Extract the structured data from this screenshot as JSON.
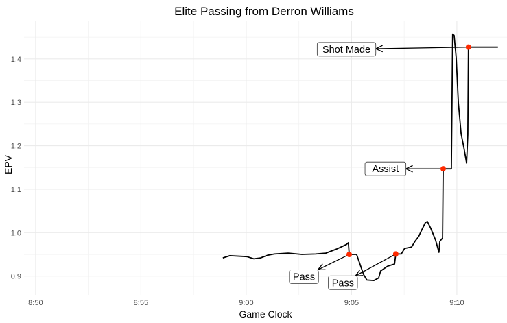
{
  "chart_data": {
    "type": "line",
    "title": "Elite Passing from Derron Williams",
    "xlabel": "Game Clock",
    "ylabel": "EPV",
    "grid": true,
    "legend": "none",
    "xlim": [
      529.45,
      552.38
    ],
    "ylim": [
      0.857,
      1.488
    ],
    "x_ticks": [
      {
        "value": 530,
        "label": "8:50"
      },
      {
        "value": 535,
        "label": "8:55"
      },
      {
        "value": 540,
        "label": "9:00"
      },
      {
        "value": 545,
        "label": "9:05"
      },
      {
        "value": 550,
        "label": "9:10"
      }
    ],
    "y_ticks": [
      {
        "value": 0.9,
        "label": "0.9"
      },
      {
        "value": 1.0,
        "label": "1.0"
      },
      {
        "value": 1.1,
        "label": "1.1"
      },
      {
        "value": 1.2,
        "label": "1.2"
      },
      {
        "value": 1.3,
        "label": "1.3"
      },
      {
        "value": 1.4,
        "label": "1.4"
      }
    ],
    "series": [
      {
        "name": "EPV",
        "color": "#000000",
        "points": [
          [
            538.89,
            0.942
          ],
          [
            539.22,
            0.947
          ],
          [
            540.03,
            0.945
          ],
          [
            540.36,
            0.94
          ],
          [
            540.68,
            0.942
          ],
          [
            541.01,
            0.948
          ],
          [
            541.34,
            0.951
          ],
          [
            541.99,
            0.953
          ],
          [
            542.64,
            0.95
          ],
          [
            543.29,
            0.951
          ],
          [
            543.78,
            0.953
          ],
          [
            544.27,
            0.962
          ],
          [
            544.76,
            0.973
          ],
          [
            544.85,
            0.977
          ],
          [
            544.89,
            0.95
          ],
          [
            545.24,
            0.95
          ],
          [
            545.34,
            0.936
          ],
          [
            545.57,
            0.904
          ],
          [
            545.73,
            0.891
          ],
          [
            546.06,
            0.89
          ],
          [
            546.29,
            0.896
          ],
          [
            546.38,
            0.912
          ],
          [
            546.71,
            0.923
          ],
          [
            547.04,
            0.928
          ],
          [
            547.1,
            0.951
          ],
          [
            547.36,
            0.951
          ],
          [
            547.52,
            0.964
          ],
          [
            547.85,
            0.967
          ],
          [
            548.01,
            0.98
          ],
          [
            548.18,
            0.991
          ],
          [
            548.34,
            1.007
          ],
          [
            548.5,
            1.023
          ],
          [
            548.6,
            1.026
          ],
          [
            548.76,
            1.01
          ],
          [
            548.99,
            0.983
          ],
          [
            549.15,
            0.955
          ],
          [
            549.19,
            0.98
          ],
          [
            549.32,
            0.988
          ],
          [
            549.35,
            1.147
          ],
          [
            549.74,
            1.147
          ],
          [
            549.8,
            1.457
          ],
          [
            549.87,
            1.454
          ],
          [
            549.97,
            1.402
          ],
          [
            550.07,
            1.299
          ],
          [
            550.2,
            1.228
          ],
          [
            550.33,
            1.196
          ],
          [
            550.46,
            1.16
          ],
          [
            550.52,
            1.226
          ],
          [
            550.55,
            1.427
          ],
          [
            551.95,
            1.427
          ]
        ]
      }
    ],
    "events": [
      {
        "label": "Pass",
        "x": 544.89,
        "y": 0.95,
        "label_x": 542.74,
        "label_y": 0.899
      },
      {
        "label": "Pass",
        "x": 547.1,
        "y": 0.951,
        "label_x": 544.59,
        "label_y": 0.885
      },
      {
        "label": "Assist",
        "x": 549.35,
        "y": 1.147,
        "label_x": 546.61,
        "label_y": 1.147
      },
      {
        "label": "Shot Made",
        "x": 550.55,
        "y": 1.427,
        "label_x": 544.76,
        "label_y": 1.422
      }
    ],
    "event_color": "#ff2a00"
  }
}
